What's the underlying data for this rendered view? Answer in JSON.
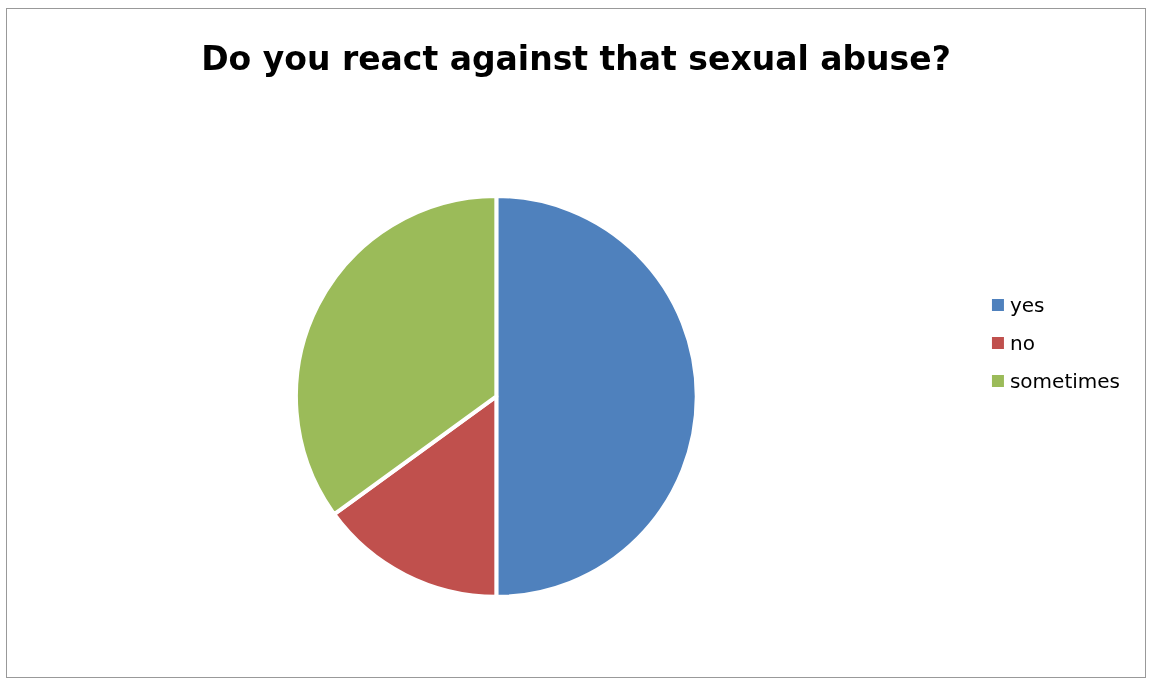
{
  "chart_data": {
    "type": "pie",
    "title": "Do you react against that sexual abuse?",
    "categories": [
      "yes",
      "no",
      "sometimes"
    ],
    "values": [
      50,
      15,
      35
    ],
    "colors": [
      "#4f81bd",
      "#c0504d",
      "#9bbb59"
    ],
    "legend": "right"
  }
}
